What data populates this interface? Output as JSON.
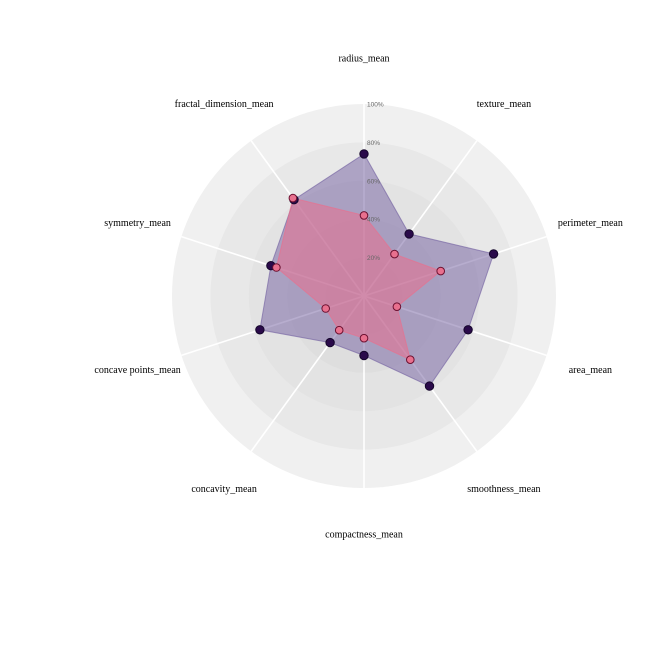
{
  "chart_data": {
    "type": "radar",
    "categories": [
      "radius_mean",
      "texture_mean",
      "perimeter_mean",
      "area_mean",
      "smoothness_mean",
      "compactness_mean",
      "concavity_mean",
      "concave points_mean",
      "symmetry_mean",
      "fractal_dimension_mean"
    ],
    "radial_ticks": [
      "20%",
      "40%",
      "60%",
      "80%",
      "100%"
    ],
    "rlim": [
      0,
      100
    ],
    "grid": true,
    "legend": "none",
    "series": [
      {
        "values": [
          74,
          40,
          71,
          57,
          58,
          31,
          30,
          57,
          51,
          62
        ],
        "color": "#2a0a4a",
        "fill": "#7b6aa5"
      },
      {
        "values": [
          42,
          27,
          42,
          18,
          41,
          22,
          22,
          21,
          48,
          63
        ],
        "color": "#6b1030",
        "fill": "#e8708e"
      }
    ]
  }
}
